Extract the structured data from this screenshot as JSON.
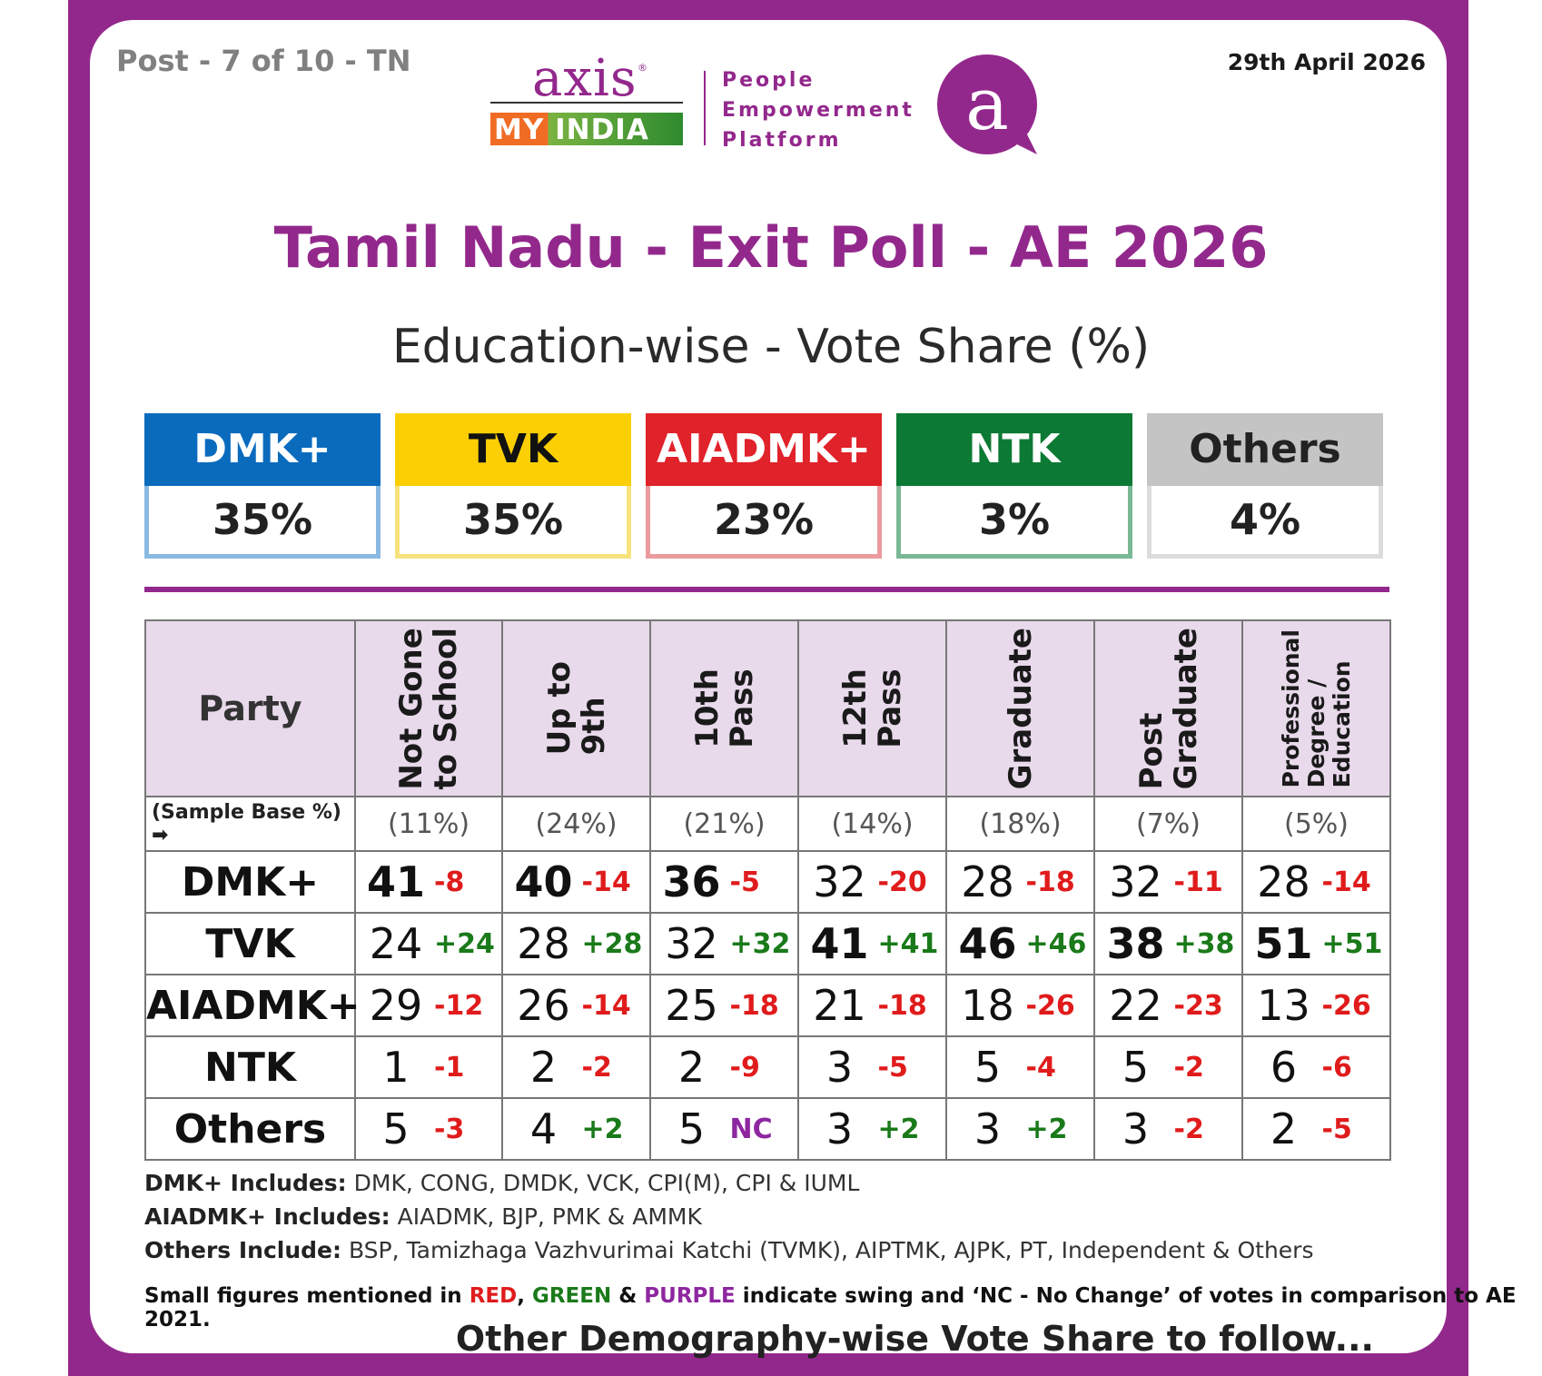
{
  "header": {
    "post_tag": "Post - 7 of 10 - TN",
    "date": "29th April 2026",
    "logo_word": "axis",
    "logo_reg": "®",
    "logo_sub": "MY INDIA",
    "tagline": [
      "People",
      "Empowerment",
      "Platform"
    ],
    "badge_letter": "a"
  },
  "title": "Tamil Nadu - Exit Poll - AE 2026",
  "subtitle": "Education-wise - Vote Share (%)",
  "summary": [
    {
      "party": "DMK+",
      "share": "35%",
      "color": "#0a6bbd",
      "text_color": "#ffffff",
      "border": "#8ab9e2"
    },
    {
      "party": "TVK",
      "share": "35%",
      "color": "#fccf04",
      "text_color": "#111111",
      "border": "#f7e27d"
    },
    {
      "party": "AIADMK+",
      "share": "23%",
      "color": "#e0222a",
      "text_color": "#ffffff",
      "border": "#eb9a9d"
    },
    {
      "party": "NTK",
      "share": "3%",
      "color": "#0c7a34",
      "text_color": "#ffffff",
      "border": "#7ab896"
    },
    {
      "party": "Others",
      "share": "4%",
      "color": "#c4c4c4",
      "text_color": "#222222",
      "border": "#dcdcdc"
    }
  ],
  "table": {
    "party_header": "Party",
    "base_label": "(Sample Base %) ➡",
    "columns": [
      {
        "label": "Not Gone\nto School",
        "base": "(11%)"
      },
      {
        "label": "Up to\n9th",
        "base": "(24%)"
      },
      {
        "label": "10th\nPass",
        "base": "(21%)"
      },
      {
        "label": "12th\nPass",
        "base": "(14%)"
      },
      {
        "label": "Graduate",
        "base": "(18%)"
      },
      {
        "label": "Post\nGraduate",
        "base": "(7%)"
      },
      {
        "label": "Professional\nDegree /\nEducation",
        "base": "(5%)"
      }
    ]
  },
  "chart_data": {
    "type": "table",
    "title": "Tamil Nadu - Exit Poll - AE 2026",
    "subtitle": "Education-wise - Vote Share (%)",
    "categories": [
      "Not Gone to School",
      "Up to 9th",
      "10th Pass",
      "12th Pass",
      "Graduate",
      "Post Graduate",
      "Professional Degree / Education"
    ],
    "sample_base": [
      "(11%)",
      "(24%)",
      "(21%)",
      "(14%)",
      "(18%)",
      "(7%)",
      "(5%)"
    ],
    "series": [
      {
        "name": "DMK+",
        "values": [
          41,
          40,
          36,
          32,
          28,
          32,
          28
        ],
        "swing": [
          "-8",
          "-14",
          "-5",
          "-20",
          "-18",
          "-11",
          "-14"
        ],
        "bold": [
          true,
          true,
          true,
          false,
          false,
          false,
          false
        ]
      },
      {
        "name": "TVK",
        "values": [
          24,
          28,
          32,
          41,
          46,
          38,
          51
        ],
        "swing": [
          "+24",
          "+28",
          "+32",
          "+41",
          "+46",
          "+38",
          "+51"
        ],
        "bold": [
          false,
          false,
          false,
          true,
          true,
          true,
          true
        ]
      },
      {
        "name": "AIADMK+",
        "values": [
          29,
          26,
          25,
          21,
          18,
          22,
          13
        ],
        "swing": [
          "-12",
          "-14",
          "-18",
          "-18",
          "-26",
          "-23",
          "-26"
        ],
        "bold": [
          false,
          false,
          false,
          false,
          false,
          false,
          false
        ]
      },
      {
        "name": "NTK",
        "values": [
          1,
          2,
          2,
          3,
          5,
          5,
          6
        ],
        "swing": [
          "-1",
          "-2",
          "-9",
          "-5",
          "-4",
          "-2",
          "-6"
        ],
        "bold": [
          false,
          false,
          false,
          false,
          false,
          false,
          false
        ]
      },
      {
        "name": "Others",
        "values": [
          5,
          4,
          5,
          3,
          3,
          3,
          2
        ],
        "swing": [
          "-3",
          "+2",
          "NC",
          "+2",
          "+2",
          "-2",
          "-5"
        ],
        "bold": [
          false,
          false,
          false,
          false,
          false,
          false,
          false
        ]
      }
    ]
  },
  "notes": [
    {
      "label": "DMK+ Includes:",
      "text": " DMK, CONG, DMDK, VCK, CPI(M), CPI & IUML"
    },
    {
      "label": "AIADMK+ Includes:",
      "text": " AIADMK, BJP, PMK & AMMK"
    },
    {
      "label": "Others Include:",
      "text": " BSP, Tamizhaga Vazhvurimai Katchi (TVMK), AIPTMK, AJPK, PT, Independent & Others"
    }
  ],
  "legend_note": {
    "pre": "Small figures mentioned in ",
    "red": "RED",
    "sep1": ", ",
    "green": "GREEN",
    "sep2": " & ",
    "purple": "PURPLE",
    "post": " indicate swing and ‘NC - No Change’ of votes in comparison to AE 2021."
  },
  "footer": "Other Demography-wise Vote Share to follow..."
}
